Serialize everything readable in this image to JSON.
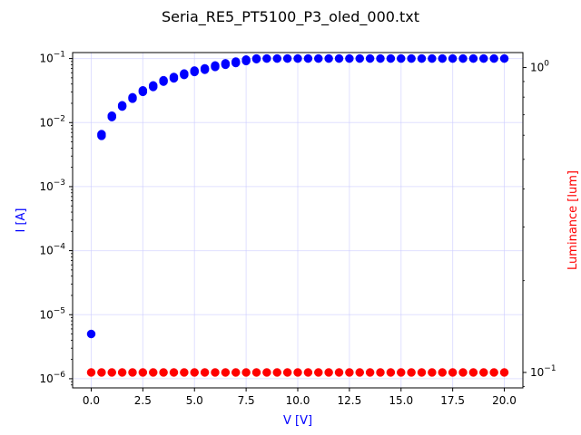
{
  "chart_data": {
    "type": "scatter",
    "title": "Seria_RE5_PT5100_P3_oled_000.txt",
    "xlabel": "V [V]",
    "ylabel_left": "I [A]",
    "ylabel_right": "Luminance [lum]",
    "xlim": [
      -0.9,
      20.9
    ],
    "ylim_left": [
      7.2e-07,
      0.124
    ],
    "ylim_right": [
      0.089,
      1.12
    ],
    "yscale_left": "log",
    "yscale_right": "log",
    "grid": true,
    "x_ticks": [
      0,
      2.5,
      5,
      7.5,
      10,
      12.5,
      15,
      17.5,
      20
    ],
    "x_tick_labels": [
      "0.0",
      "2.5",
      "5.0",
      "7.5",
      "10.0",
      "12.5",
      "15.0",
      "17.5",
      "20.0"
    ],
    "y_left_ticks": [
      {
        "value": 1e-06,
        "base": "10",
        "exp": "−6"
      },
      {
        "value": 1e-05,
        "base": "10",
        "exp": "−5"
      },
      {
        "value": 0.0001,
        "base": "10",
        "exp": "−4"
      },
      {
        "value": 0.001,
        "base": "10",
        "exp": "−3"
      },
      {
        "value": 0.01,
        "base": "10",
        "exp": "−2"
      },
      {
        "value": 0.1,
        "base": "10",
        "exp": "−1"
      }
    ],
    "y_right_ticks": [
      {
        "value": 0.1,
        "base": "10",
        "exp": "−1"
      },
      {
        "value": 1,
        "base": "10",
        "exp": "0"
      }
    ],
    "colors": {
      "current": "#0000ff",
      "luminance": "#ff0000",
      "label_left": "#0000ff",
      "label_right": "#ff0000",
      "grid": "#ccccff"
    },
    "series": [
      {
        "axis": "left",
        "color": "#0000ff",
        "x": [
          0,
          0.5,
          0.5,
          1,
          1,
          1.5,
          1.5,
          2,
          2,
          2.5,
          2.5,
          3,
          3,
          3.5,
          3.5,
          4,
          4,
          4.5,
          4.5,
          5,
          5,
          5.5,
          5.5,
          6,
          6,
          6.5,
          6.5,
          7,
          7,
          7.5,
          7.5,
          8,
          8,
          8.5,
          9,
          9.5,
          10,
          10.5,
          11,
          11.5,
          12,
          12.5,
          13,
          13.5,
          14,
          14.5,
          15,
          15.5,
          16,
          16.5,
          17,
          17.5,
          18,
          18.5,
          19,
          19.5,
          20
        ],
        "y": [
          5e-06,
          0.0062,
          0.0066,
          0.0122,
          0.0128,
          0.0178,
          0.0186,
          0.0236,
          0.0248,
          0.0302,
          0.0318,
          0.036,
          0.038,
          0.0436,
          0.0458,
          0.049,
          0.0515,
          0.0555,
          0.0583,
          0.0617,
          0.0648,
          0.0668,
          0.0702,
          0.074,
          0.0778,
          0.08,
          0.0842,
          0.0852,
          0.0896,
          0.0915,
          0.0962,
          0.098,
          0.1,
          0.1,
          0.1,
          0.1,
          0.1,
          0.1,
          0.1,
          0.1,
          0.1,
          0.1,
          0.1,
          0.1,
          0.1,
          0.1,
          0.1,
          0.1,
          0.1,
          0.1,
          0.1,
          0.1,
          0.1,
          0.1,
          0.1,
          0.1,
          0.1
        ]
      },
      {
        "axis": "right",
        "color": "#ff0000",
        "x": [
          0,
          0.5,
          1,
          1.5,
          2,
          2.5,
          3,
          3.5,
          4,
          4.5,
          5,
          5.5,
          6,
          6.5,
          7,
          7.5,
          8,
          8.5,
          9,
          9.5,
          10,
          10.5,
          11,
          11.5,
          12,
          12.5,
          13,
          13.5,
          14,
          14.5,
          15,
          15.5,
          16,
          16.5,
          17,
          17.5,
          18,
          18.5,
          19,
          19.5,
          20
        ],
        "y": [
          0.1,
          0.1,
          0.1,
          0.1,
          0.1,
          0.1,
          0.1,
          0.1,
          0.1,
          0.1,
          0.1,
          0.1,
          0.1,
          0.1,
          0.1,
          0.1,
          0.1,
          0.1,
          0.1,
          0.1,
          0.1,
          0.1,
          0.1,
          0.1,
          0.1,
          0.1,
          0.1,
          0.1,
          0.1,
          0.1,
          0.1,
          0.1,
          0.1,
          0.1,
          0.1,
          0.1,
          0.1,
          0.1,
          0.1,
          0.1,
          0.1
        ]
      }
    ]
  }
}
